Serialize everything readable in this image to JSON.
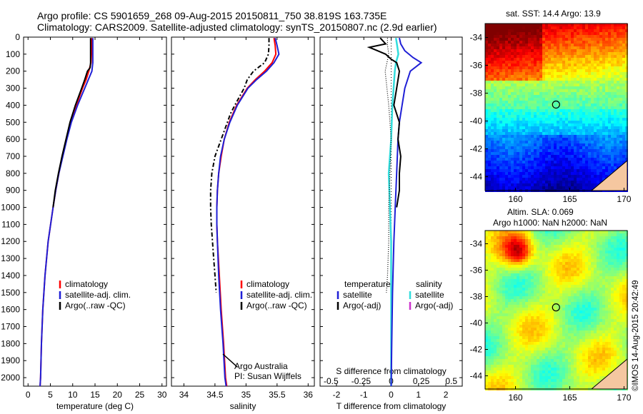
{
  "header": {
    "line1": "Argo profile: CS 5901659_268 09-Aug-2015 20150811_750 38.819S 163.735E",
    "line2": "Climatology: CARS2009. Satellite-adjusted climatology: synTS_20150807.nc (2.9d earlier)"
  },
  "colors": {
    "climatology": "#ff0000",
    "satellite": "#1f1fd6",
    "argo": "#000000",
    "sal_satellite": "#33dddd",
    "sal_argo": "#cc33cc"
  },
  "chart_data": [
    {
      "id": "temperature",
      "type": "line",
      "xlabel": "temperature (deg C)",
      "ylabel": "",
      "xlim": [
        -1,
        31
      ],
      "ylim": [
        2050,
        0
      ],
      "xticks": [
        "0",
        "5",
        "10",
        "15",
        "20",
        "25",
        "30"
      ],
      "yticks": [
        "0",
        "100",
        "200",
        "300",
        "400",
        "500",
        "600",
        "700",
        "800",
        "900",
        "1000",
        "1100",
        "1200",
        "1300",
        "1400",
        "1500",
        "1600",
        "1700",
        "1800",
        "1900",
        "2000"
      ],
      "legend": [
        "climatology",
        "satellite-adj. clim.",
        "Argo(..raw -QC)"
      ],
      "series": [
        {
          "name": "climatology",
          "depth": [
            5,
            50,
            100,
            150,
            200,
            250,
            300,
            400,
            500,
            600,
            700,
            800,
            900,
            1000,
            1200,
            1400,
            1600,
            1800,
            2000,
            2050
          ],
          "values": [
            14.2,
            14.2,
            14.2,
            14.1,
            13.6,
            13.0,
            12.2,
            10.8,
            9.5,
            8.6,
            7.7,
            6.9,
            6.2,
            5.6,
            4.5,
            3.8,
            3.3,
            3.0,
            2.8,
            2.7
          ]
        },
        {
          "name": "satellite-adj. clim.",
          "depth": [
            5,
            50,
            100,
            150,
            200,
            250,
            300,
            400,
            500,
            600,
            700,
            800,
            900,
            1000,
            1200,
            1400,
            1600,
            1800,
            2000,
            2050
          ],
          "values": [
            14.5,
            14.5,
            14.5,
            14.5,
            14.3,
            13.5,
            12.7,
            11.1,
            9.7,
            8.7,
            7.8,
            6.9,
            6.2,
            5.6,
            4.5,
            3.8,
            3.3,
            3.0,
            2.8,
            2.7
          ]
        },
        {
          "name": "Argo(..raw -QC)",
          "depth": [
            5,
            50,
            100,
            150,
            180,
            200,
            250,
            300,
            400,
            500,
            600,
            700,
            800,
            900,
            1000
          ],
          "values": [
            14.0,
            14.0,
            14.0,
            14.0,
            13.9,
            13.3,
            12.7,
            12.0,
            10.6,
            9.4,
            8.5,
            7.6,
            6.8,
            6.1,
            5.6
          ]
        }
      ]
    },
    {
      "id": "salinity",
      "type": "line",
      "xlabel": "salinity",
      "ylabel": "",
      "xlim": [
        33.8,
        36.1
      ],
      "ylim": [
        2050,
        0
      ],
      "xticks": [
        "34",
        "34.5",
        "35",
        "35.5",
        "36"
      ],
      "legend": [
        "climatology",
        "satellite-adj. clim.",
        "Argo(..raw -QC)"
      ],
      "annotation": [
        "Argo Australia",
        "PI: Susan Wijffels"
      ],
      "series": [
        {
          "name": "climatology",
          "depth": [
            5,
            50,
            100,
            150,
            200,
            250,
            300,
            400,
            500,
            600,
            700,
            800,
            900,
            1000,
            1100,
            1200,
            1400,
            1600,
            1800,
            2000,
            2050
          ],
          "values": [
            35.45,
            35.47,
            35.48,
            35.42,
            35.3,
            35.15,
            35.02,
            34.85,
            34.73,
            34.65,
            34.6,
            34.56,
            34.54,
            34.53,
            34.53,
            34.54,
            34.57,
            34.6,
            34.64,
            34.67,
            34.69
          ]
        },
        {
          "name": "satellite-adj. clim.",
          "depth": [
            5,
            50,
            100,
            150,
            200,
            250,
            300,
            400,
            500,
            600,
            700,
            800,
            900,
            1000,
            1100,
            1200,
            1400,
            1600,
            1800,
            2000,
            2050
          ],
          "values": [
            35.47,
            35.5,
            35.53,
            35.45,
            35.33,
            35.17,
            35.03,
            34.86,
            34.74,
            34.65,
            34.59,
            34.56,
            34.54,
            34.53,
            34.53,
            34.54,
            34.56,
            34.59,
            34.63,
            34.66,
            34.68
          ]
        },
        {
          "name": "Argo(..raw -QC)",
          "depth": [
            5,
            50,
            100,
            150,
            200,
            250,
            300,
            400,
            450,
            500,
            600,
            700,
            800,
            900,
            1000,
            1100,
            1200,
            1300,
            1400,
            1500
          ],
          "values": [
            35.37,
            35.37,
            35.36,
            35.3,
            35.12,
            35.02,
            34.97,
            34.82,
            34.75,
            34.7,
            34.6,
            34.5,
            34.45,
            34.43,
            34.43,
            34.44,
            34.46,
            34.48,
            34.5,
            34.52
          ]
        }
      ]
    },
    {
      "id": "difference",
      "type": "line",
      "xlabel": "T difference from climatology",
      "xlabel_top": "S difference from climatology",
      "xlim": [
        -2.6,
        2.6
      ],
      "ylim": [
        2050,
        0
      ],
      "xticks": [
        "-2",
        "-1",
        "0",
        "1",
        "2"
      ],
      "sticks": [
        "-0.5",
        "-0.25",
        "0",
        "0.25",
        "0.5"
      ],
      "legend_titles": [
        "temperature",
        "salinity"
      ],
      "legend_t": [
        "satellite",
        "Argo(-adj)"
      ],
      "legend_s": [
        "satellite",
        "Argo(-adj)"
      ],
      "series": [
        {
          "name": "temperature satellite",
          "depth": [
            5,
            40,
            80,
            120,
            150,
            200,
            300,
            400,
            500,
            600,
            800,
            1000,
            1200,
            1500,
            1800,
            2050
          ],
          "values": [
            0.3,
            0.35,
            0.5,
            0.8,
            1.1,
            0.7,
            0.5,
            0.4,
            0.3,
            0.25,
            0.2,
            0.15,
            0.1,
            0.05,
            0.02,
            0.0
          ]
        },
        {
          "name": "temperature Argo(-adj)",
          "depth": [
            5,
            40,
            60,
            80,
            100,
            130,
            150,
            200,
            300,
            400,
            500,
            600,
            700,
            800,
            900,
            1000
          ],
          "values": [
            -0.4,
            -0.2,
            -0.8,
            -0.5,
            -0.2,
            0.0,
            0.2,
            0.3,
            0.2,
            0.1,
            0.3,
            0.25,
            0.35,
            0.3,
            0.3,
            0.2
          ]
        },
        {
          "name": "salinity satellite",
          "depth": [
            5,
            50,
            100,
            150,
            200,
            300,
            400,
            600,
            800,
            1000,
            1200,
            1400,
            1600,
            1800,
            2050
          ],
          "values": [
            0.04,
            0.05,
            0.06,
            0.04,
            0.03,
            0.02,
            0.01,
            0.0,
            -0.02,
            -0.01,
            0.0,
            0.0,
            0.0,
            0.0,
            0.0
          ]
        },
        {
          "name": "salinity Argo(-adj)",
          "depth": [
            5,
            50,
            100,
            200,
            400,
            600,
            800,
            1000,
            1200,
            1400,
            1500
          ],
          "values": [
            -0.03,
            -0.03,
            -0.02,
            -0.05,
            -0.02,
            0.0,
            -0.01,
            -0.02,
            -0.02,
            -0.03,
            -0.04
          ]
        }
      ]
    },
    {
      "id": "sst_map",
      "type": "heatmap",
      "title": "sat. SST: 14.4  Argo: 13.9",
      "xticks": [
        "160",
        "165",
        "170"
      ],
      "yticks": [
        "-34",
        "-36",
        "-38",
        "-40",
        "-42",
        "-44"
      ],
      "xlim": [
        157.2,
        170.3
      ],
      "ylim": [
        -45,
        -33
      ],
      "float_position": [
        163.735,
        -38.819
      ]
    },
    {
      "id": "sla_map",
      "type": "heatmap",
      "title": "Altim. SLA: 0.069",
      "subtitle": "Argo h1000: NaN h2000: NaN",
      "xticks": [
        "160",
        "165",
        "170"
      ],
      "yticks": [
        "-34",
        "-36",
        "-38",
        "-40",
        "-42",
        "-44"
      ],
      "xlim": [
        157.2,
        170.3
      ],
      "ylim": [
        -45,
        -33
      ],
      "float_position": [
        163.735,
        -38.819
      ]
    }
  ],
  "footer": {
    "side_stamp": "©IMOS 14-Aug-2015 20:42:49"
  }
}
